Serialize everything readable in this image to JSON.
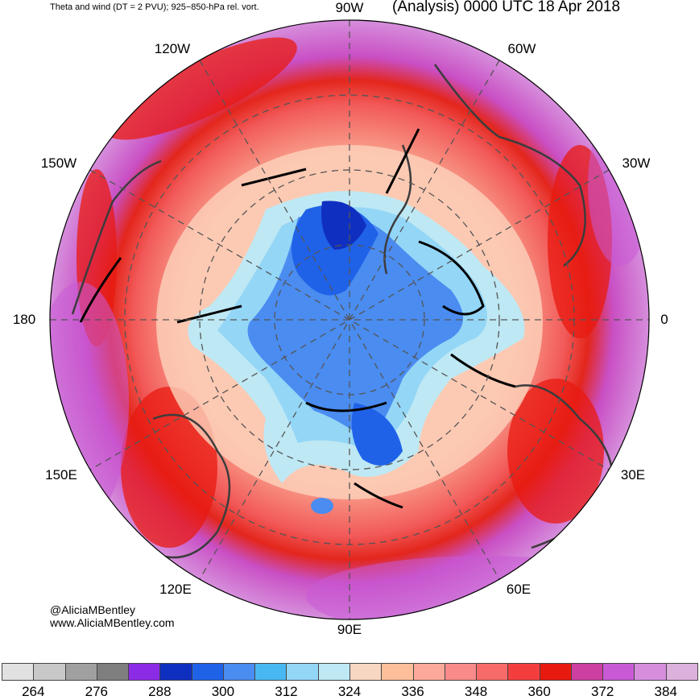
{
  "header": {
    "left_title": "Theta and wind (DT = 2 PVU); 925−850-hPa rel. vort.",
    "right_title": "(Analysis) 0000 UTC 18 Apr 2018"
  },
  "map": {
    "projection": "north-polar-stereographic",
    "longitude_labels": [
      "90W",
      "60W",
      "30W",
      "0",
      "30E",
      "60E",
      "90E",
      "120E",
      "150E",
      "180",
      "150W",
      "120W"
    ],
    "field": "potential temperature on dynamic tropopause",
    "cold_core_color": "#1e3fd0",
    "warm_ring_color": "#ea1b14"
  },
  "credits": {
    "handle": "@AliciaMBentley",
    "url": "www.AliciaMBentley.com"
  },
  "colorbar": {
    "colors": [
      "#e1e1e1",
      "#c8c8c8",
      "#a0a0a0",
      "#7f7f7f",
      "#8c2be6",
      "#0f2fc0",
      "#1f62e8",
      "#4a8cf0",
      "#49b8f2",
      "#94d6f6",
      "#bee8f4",
      "#f8d7c2",
      "#fcbf9a",
      "#fca99a",
      "#f88a8a",
      "#f76a6a",
      "#f43e3e",
      "#e81a10",
      "#cd3fa0",
      "#c95ad6",
      "#d68edc",
      "#dcb2dc"
    ],
    "tick_labels": [
      "264",
      "276",
      "288",
      "300",
      "312",
      "324",
      "336",
      "348",
      "360",
      "372",
      "384"
    ]
  }
}
